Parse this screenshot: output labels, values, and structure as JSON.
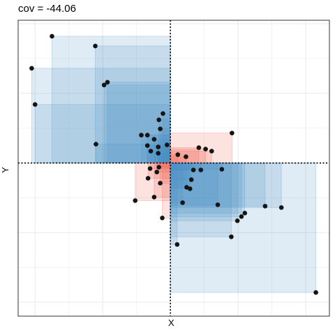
{
  "chart_data": {
    "type": "scatter",
    "title": "cov = -44.06",
    "xlabel": "X",
    "ylabel": "Y",
    "grid": true,
    "mean": {
      "x": 0,
      "y": 0
    },
    "xlim": [
      -22.5,
      23.5
    ],
    "ylim": [
      -22,
      20.5
    ],
    "colors": {
      "negative": "#4a90c4",
      "positive": "#f05a45",
      "point": "#141414",
      "grid": "#ebebeb",
      "frame": "#333333"
    },
    "points": [
      {
        "x": -17.5,
        "y": 18.2
      },
      {
        "x": -11.1,
        "y": 16.8
      },
      {
        "x": -20.5,
        "y": 13.6
      },
      {
        "x": -9.3,
        "y": 11.6
      },
      {
        "x": -9.8,
        "y": 11.2
      },
      {
        "x": -20.0,
        "y": 8.4
      },
      {
        "x": -1.1,
        "y": 7.1
      },
      {
        "x": -1.7,
        "y": 6.2
      },
      {
        "x": -1.5,
        "y": 4.9
      },
      {
        "x": -4.3,
        "y": 4.0
      },
      {
        "x": -3.4,
        "y": 4.0
      },
      {
        "x": -2.4,
        "y": 3.4
      },
      {
        "x": -11.0,
        "y": 2.7
      },
      {
        "x": -3.4,
        "y": 2.5
      },
      {
        "x": -1.8,
        "y": 2.3
      },
      {
        "x": -0.5,
        "y": 2.6
      },
      {
        "x": -2.9,
        "y": 1.7
      },
      {
        "x": -1.8,
        "y": 1.4
      },
      {
        "x": 9.1,
        "y": 4.3
      },
      {
        "x": 4.2,
        "y": 2.2
      },
      {
        "x": 6.1,
        "y": 1.7
      },
      {
        "x": 5.2,
        "y": 2.0
      },
      {
        "x": 1.1,
        "y": 1.2
      },
      {
        "x": 2.3,
        "y": 0.9
      },
      {
        "x": -1.7,
        "y": -0.6
      },
      {
        "x": -3.0,
        "y": -0.8
      },
      {
        "x": -2.0,
        "y": -1.3
      },
      {
        "x": -3.3,
        "y": -2.2
      },
      {
        "x": -1.5,
        "y": -2.9
      },
      {
        "x": -2.4,
        "y": -4.9
      },
      {
        "x": -5.2,
        "y": -5.4
      },
      {
        "x": -1.2,
        "y": -7.9
      },
      {
        "x": 7.6,
        "y": -0.9
      },
      {
        "x": 3.4,
        "y": -1.0
      },
      {
        "x": 4.5,
        "y": -1.0
      },
      {
        "x": 3.1,
        "y": -2.4
      },
      {
        "x": 2.4,
        "y": -3.5
      },
      {
        "x": 2.9,
        "y": -3.7
      },
      {
        "x": 1.8,
        "y": -5.7
      },
      {
        "x": 7.0,
        "y": -6.0
      },
      {
        "x": 14.0,
        "y": -6.2
      },
      {
        "x": 16.4,
        "y": -6.4
      },
      {
        "x": 11.0,
        "y": -7.2
      },
      {
        "x": 10.5,
        "y": -7.7
      },
      {
        "x": 9.9,
        "y": -8.3
      },
      {
        "x": 9.0,
        "y": -10.6
      },
      {
        "x": 1.0,
        "y": -11.7
      },
      {
        "x": 21.5,
        "y": -18.6
      }
    ]
  }
}
